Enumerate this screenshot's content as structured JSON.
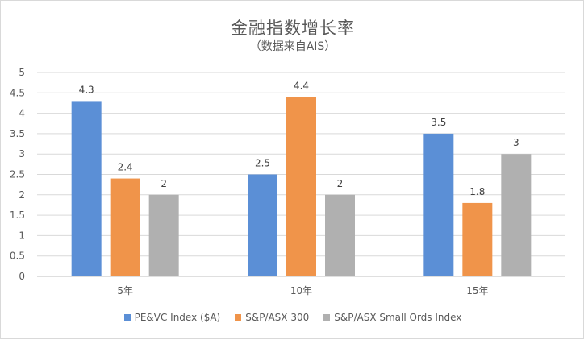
{
  "chart_data": {
    "type": "bar",
    "title": "金融指数增长率",
    "subtitle": "（数据来自AIS）",
    "categories": [
      "5年",
      "10年",
      "15年"
    ],
    "series": [
      {
        "name": "PE&VC Index ($A)",
        "values": [
          4.3,
          2.5,
          3.5
        ],
        "color": "#5b8fd6"
      },
      {
        "name": "S&P/ASX 300",
        "values": [
          2.4,
          4.4,
          1.8
        ],
        "color": "#f0944a"
      },
      {
        "name": "S&P/ASX Small Ords Index",
        "values": [
          2,
          2,
          3
        ],
        "color": "#b0b0b0"
      }
    ],
    "data_labels": [
      [
        "4.3",
        "2.5",
        "3.5"
      ],
      [
        "2.4",
        "4.4",
        "1.8"
      ],
      [
        "2",
        "2",
        "3"
      ]
    ],
    "ylim": [
      0,
      5
    ],
    "yticks": [
      "0",
      "0.5",
      "1",
      "1.5",
      "2",
      "2.5",
      "3",
      "3.5",
      "4",
      "4.5",
      "5"
    ],
    "grid": true,
    "legend_position": "bottom"
  }
}
